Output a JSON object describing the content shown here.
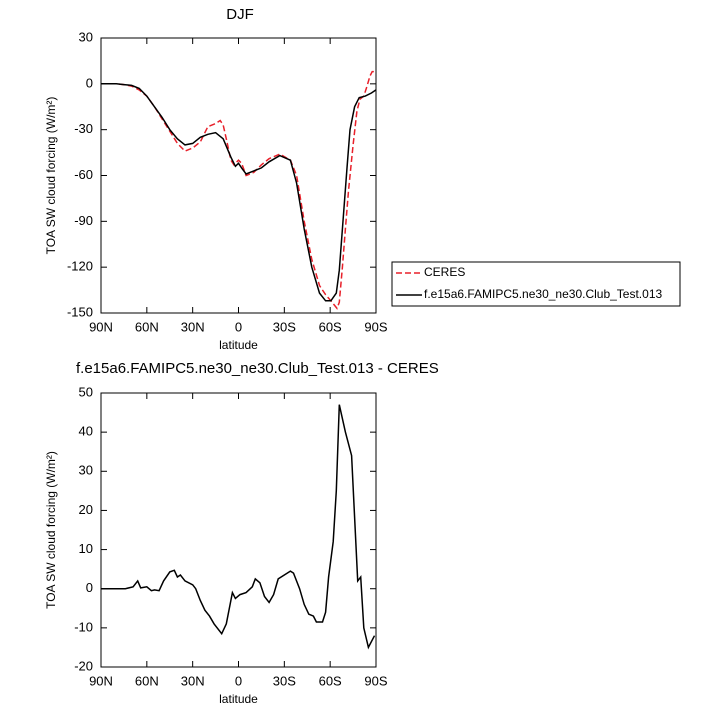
{
  "chart_data": [
    {
      "type": "line",
      "title": "DJF",
      "x_label": "latitude",
      "y_label": "TOA SW cloud forcing (W/m²)",
      "xlim": [
        90,
        -90
      ],
      "xticks": [
        {
          "value": 90,
          "label": "90N"
        },
        {
          "value": 60,
          "label": "60N"
        },
        {
          "value": 30,
          "label": "30N"
        },
        0,
        {
          "value": -30,
          "label": "30S"
        },
        {
          "value": -60,
          "label": "60S"
        },
        {
          "value": -90,
          "label": "90S"
        }
      ],
      "ylim": [
        -150,
        30
      ],
      "yticks": [
        -150,
        -120,
        -90,
        -60,
        -30,
        0,
        30
      ],
      "legend": "right",
      "series": [
        {
          "name": "CERES",
          "color": "#e8202a",
          "dash": true,
          "x": [
            90,
            80,
            75,
            70,
            65,
            60,
            55,
            50,
            45,
            40,
            35,
            30,
            25,
            20,
            15,
            12,
            10,
            8,
            5,
            3,
            0,
            -2,
            -5,
            -10,
            -15,
            -20,
            -27,
            -34,
            -38,
            -43,
            -48,
            -53,
            -57,
            -60.5,
            -64.5,
            -66,
            -68,
            -70,
            -72,
            -75,
            -77.5,
            -79.5,
            -82,
            -84,
            -86,
            -87.5,
            -90
          ],
          "values": [
            0,
            0,
            -0.5,
            -1.5,
            -4,
            -8,
            -15,
            -23,
            -31,
            -39,
            -44,
            -42,
            -38,
            -28,
            -26,
            -24,
            -27,
            -36,
            -50,
            -53,
            -50,
            -52,
            -60,
            -58,
            -53,
            -49,
            -46,
            -50,
            -60,
            -90,
            -115,
            -132,
            -138,
            -142,
            -147,
            -143,
            -120,
            -95,
            -70,
            -40,
            -18,
            -10,
            -8,
            -2,
            5,
            8,
            8
          ]
        },
        {
          "name": "f.e15a6.FAMIPC5.ne30_ne30.Club_Test.013",
          "color": "#000000",
          "dash": false,
          "x": [
            90,
            80,
            75,
            70,
            65,
            60,
            55,
            50,
            45,
            40,
            35,
            30,
            25,
            20,
            15,
            10,
            5,
            2,
            0,
            -2,
            -5,
            -10,
            -15,
            -20,
            -27,
            -34,
            -38,
            -43,
            -48,
            -53,
            -57,
            -60.5,
            -64,
            -66,
            -68,
            -71,
            -73,
            -76,
            -79,
            -83,
            -87,
            -90
          ],
          "values": [
            0,
            0,
            -0.5,
            -1,
            -3,
            -8,
            -15,
            -22,
            -30,
            -36,
            -40,
            -39,
            -35,
            -33,
            -32,
            -36,
            -48,
            -54,
            -52,
            -55,
            -59,
            -57,
            -55,
            -51,
            -47,
            -50,
            -65,
            -95,
            -120,
            -137,
            -142,
            -142,
            -137,
            -122,
            -95,
            -55,
            -30,
            -15,
            -9,
            -8,
            -6,
            -4
          ]
        }
      ]
    },
    {
      "type": "line",
      "title": "f.e15a6.FAMIPC5.ne30_ne30.Club_Test.013 - CERES",
      "x_label": "latitude",
      "y_label": "TOA SW cloud forcing (W/m²)",
      "xlim": [
        90,
        -90
      ],
      "xticks": [
        {
          "value": 90,
          "label": "90N"
        },
        {
          "value": 60,
          "label": "60N"
        },
        {
          "value": 30,
          "label": "30N"
        },
        0,
        {
          "value": -30,
          "label": "30S"
        },
        {
          "value": -60,
          "label": "60S"
        },
        {
          "value": -90,
          "label": "90S"
        }
      ],
      "ylim": [
        -20,
        50
      ],
      "yticks": [
        -20,
        -10,
        0,
        10,
        20,
        30,
        40,
        50
      ],
      "series": [
        {
          "color": "#000000",
          "dash": false,
          "x": [
            90,
            74,
            69,
            66,
            64,
            60,
            57,
            55,
            52,
            49,
            45,
            42,
            40,
            38,
            35,
            30,
            28,
            25,
            22,
            19,
            16,
            11,
            8,
            4,
            2,
            -1,
            -5,
            -9,
            -11,
            -14,
            -17,
            -20,
            -23,
            -26,
            -30,
            -34,
            -36,
            -40,
            -43,
            -46,
            -49,
            -51,
            -55,
            -57,
            -59,
            -62,
            -64,
            -66,
            -70,
            -74,
            -78,
            -80,
            -82,
            -85,
            -89
          ],
          "values": [
            0,
            0,
            0.5,
            2,
            0.2,
            0.5,
            -0.5,
            -0.3,
            -0.5,
            2,
            4.3,
            4.7,
            3,
            3.5,
            2,
            1,
            0,
            -3,
            -5.5,
            -7,
            -9,
            -11.5,
            -9,
            -1,
            -2.5,
            -1.5,
            -1,
            0.5,
            2.5,
            1.5,
            -2,
            -3.5,
            -1.5,
            2.5,
            3.5,
            4.5,
            4,
            0,
            -4,
            -6.5,
            -7,
            -8.5,
            -8.5,
            -6,
            3,
            12,
            25,
            47,
            40,
            34,
            2,
            3,
            -10,
            -15,
            -12
          ]
        }
      ]
    }
  ]
}
